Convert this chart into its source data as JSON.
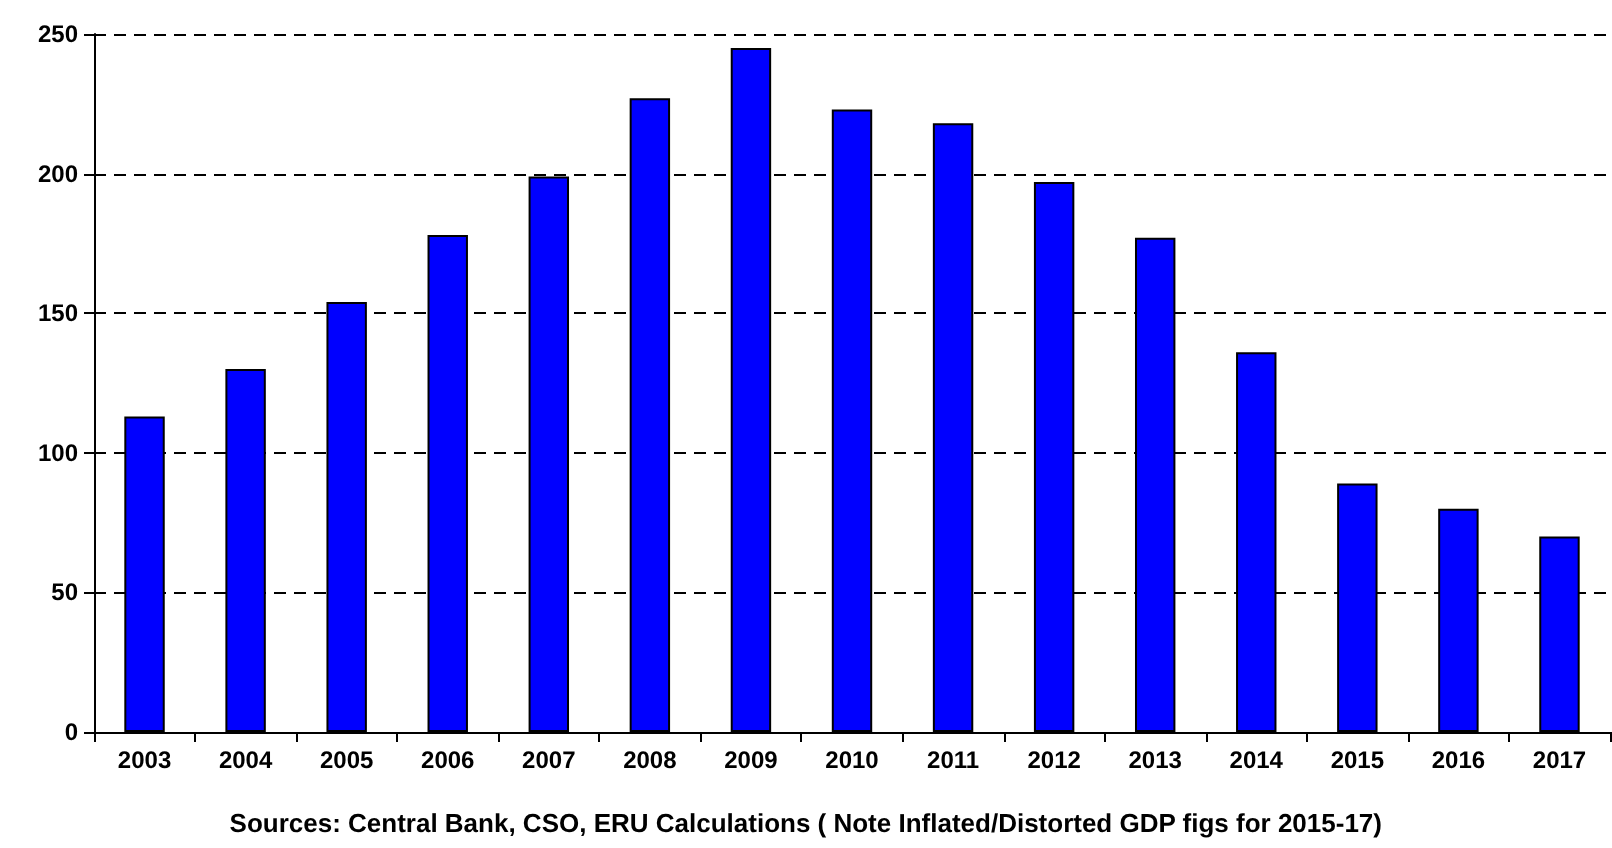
{
  "chart_data": {
    "type": "bar",
    "categories": [
      "2003",
      "2004",
      "2005",
      "2006",
      "2007",
      "2008",
      "2009",
      "2010",
      "2011",
      "2012",
      "2013",
      "2014",
      "2015",
      "2016",
      "2017"
    ],
    "values": [
      113,
      130,
      154,
      178,
      199,
      227,
      245,
      223,
      218,
      197,
      177,
      136,
      89,
      80,
      70
    ],
    "color": "#0000ff",
    "ylim": [
      0,
      250
    ],
    "yticks": [
      0,
      50,
      100,
      150,
      200,
      250
    ],
    "grid": "y",
    "annotations": [
      "Sources: Central Bank, CSO, ERU Calculations ( Note Inflated/Distorted GDP figs for 2015-17)"
    ]
  }
}
